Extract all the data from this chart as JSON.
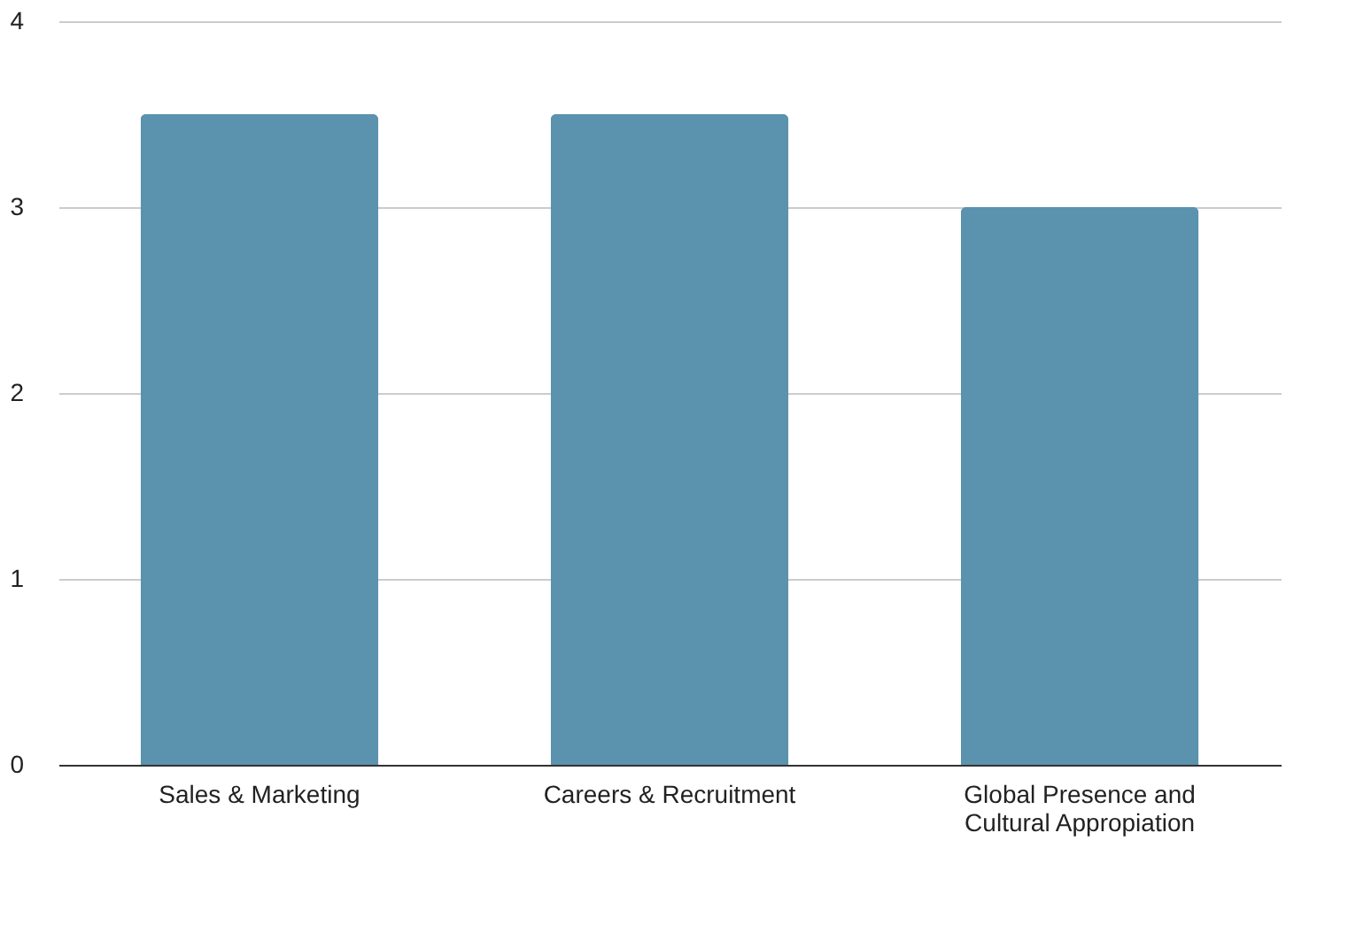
{
  "chart_data": {
    "type": "bar",
    "categories": [
      "Sales & Marketing",
      "Careers & Recruitment",
      "Global Presence and Cultural Appropiation"
    ],
    "values": [
      3.5,
      3.5,
      3
    ],
    "color": "#5b92ae",
    "ylim": [
      0,
      4
    ],
    "yticks": [
      0,
      1,
      2,
      3,
      4
    ],
    "grid": "y"
  }
}
